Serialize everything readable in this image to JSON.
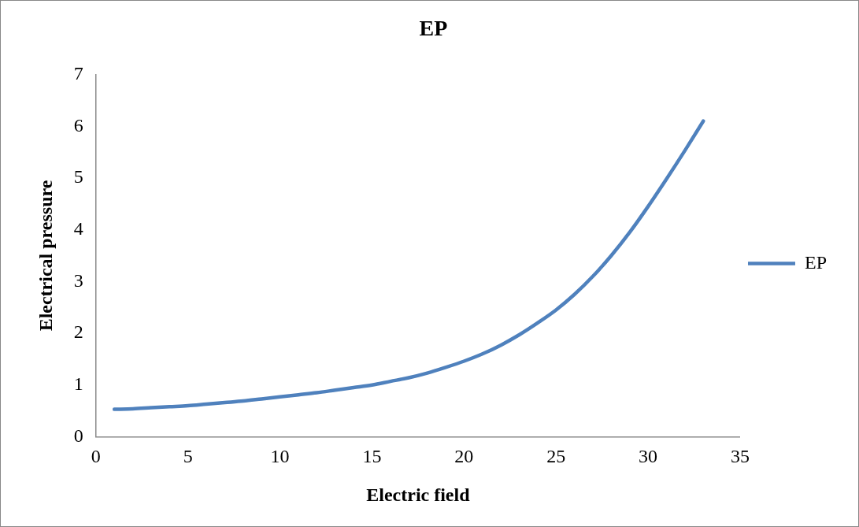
{
  "chart_data": {
    "type": "line",
    "title": "EP",
    "xlabel": "Electric field",
    "ylabel": "Electrical pressure",
    "x": [
      1,
      2,
      3,
      4,
      5,
      6,
      7,
      8,
      9,
      10,
      11,
      12,
      13,
      14,
      15,
      16,
      17,
      18,
      19,
      20,
      21,
      22,
      23,
      24,
      25,
      26,
      27,
      28,
      29,
      30,
      31,
      32,
      33
    ],
    "series": [
      {
        "name": "EP",
        "color": "#4f81bd",
        "values": [
          0.53,
          0.54,
          0.56,
          0.58,
          0.6,
          0.63,
          0.66,
          0.69,
          0.73,
          0.77,
          0.81,
          0.85,
          0.9,
          0.95,
          1.0,
          1.07,
          1.14,
          1.23,
          1.34,
          1.46,
          1.6,
          1.77,
          1.97,
          2.2,
          2.45,
          2.75,
          3.1,
          3.5,
          3.95,
          4.45,
          4.98,
          5.53,
          6.1
        ]
      }
    ],
    "xlim": [
      0,
      35
    ],
    "xticks": [
      0,
      5,
      10,
      15,
      20,
      25,
      30,
      35
    ],
    "ylim": [
      0,
      7
    ],
    "yticks": [
      0,
      1,
      2,
      3,
      4,
      5,
      6,
      7
    ],
    "grid": false,
    "legend": "right",
    "marker": "none",
    "line_style": "solid"
  }
}
